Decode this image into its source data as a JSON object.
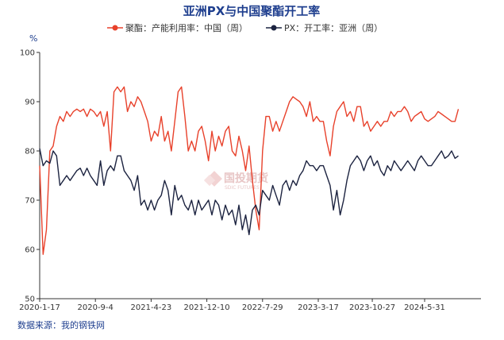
{
  "chart_data": {
    "type": "line",
    "title": "亚洲PX与中国聚酯开工率",
    "ylabel": "%",
    "ylim": [
      50,
      100
    ],
    "yticks": [
      50,
      60,
      70,
      80,
      90,
      100
    ],
    "xticks": [
      "2020-1-17",
      "2020-9-4",
      "2021-4-23",
      "2021-12-10",
      "2022-7-29",
      "2023-3-17",
      "2023-10-27",
      "2024-5-31"
    ],
    "grid": false,
    "legend_position": "top-center",
    "source": "数据来源：我的钢铁网",
    "watermark": {
      "text": "国投期货",
      "sub": "SDIC FUTURES"
    },
    "x": [
      "2020-01-17",
      "2020-01-31",
      "2020-02-14",
      "2020-02-28",
      "2020-03-13",
      "2020-03-27",
      "2020-04-10",
      "2020-04-24",
      "2020-05-08",
      "2020-05-22",
      "2020-06-05",
      "2020-06-19",
      "2020-07-03",
      "2020-07-17",
      "2020-07-31",
      "2020-08-14",
      "2020-08-28",
      "2020-09-11",
      "2020-09-25",
      "2020-10-09",
      "2020-10-23",
      "2020-11-06",
      "2020-11-20",
      "2020-12-04",
      "2020-12-18",
      "2021-01-01",
      "2021-01-15",
      "2021-01-29",
      "2021-02-12",
      "2021-02-26",
      "2021-03-12",
      "2021-03-26",
      "2021-04-09",
      "2021-04-23",
      "2021-05-07",
      "2021-05-21",
      "2021-06-04",
      "2021-06-18",
      "2021-07-02",
      "2021-07-16",
      "2021-07-30",
      "2021-08-13",
      "2021-08-27",
      "2021-09-10",
      "2021-09-24",
      "2021-10-08",
      "2021-10-22",
      "2021-11-05",
      "2021-11-19",
      "2021-12-03",
      "2021-12-17",
      "2021-12-31",
      "2022-01-14",
      "2022-01-28",
      "2022-02-11",
      "2022-02-25",
      "2022-03-11",
      "2022-03-25",
      "2022-04-08",
      "2022-04-22",
      "2022-05-06",
      "2022-05-20",
      "2022-06-03",
      "2022-06-17",
      "2022-07-01",
      "2022-07-15",
      "2022-07-29",
      "2022-08-12",
      "2022-08-26",
      "2022-09-09",
      "2022-09-23",
      "2022-10-07",
      "2022-10-21",
      "2022-11-04",
      "2022-11-18",
      "2022-12-02",
      "2022-12-16",
      "2022-12-30",
      "2023-01-13",
      "2023-01-27",
      "2023-02-10",
      "2023-02-24",
      "2023-03-10",
      "2023-03-24",
      "2023-04-07",
      "2023-04-21",
      "2023-05-05",
      "2023-05-19",
      "2023-06-02",
      "2023-06-16",
      "2023-06-30",
      "2023-07-14",
      "2023-07-28",
      "2023-08-11",
      "2023-08-25",
      "2023-09-08",
      "2023-09-22",
      "2023-10-06",
      "2023-10-20",
      "2023-11-03",
      "2023-11-17",
      "2023-12-01",
      "2023-12-15",
      "2023-12-29",
      "2024-01-12",
      "2024-01-26",
      "2024-02-09",
      "2024-02-23",
      "2024-03-08",
      "2024-03-22",
      "2024-04-05",
      "2024-04-19",
      "2024-05-03",
      "2024-05-17",
      "2024-05-31",
      "2024-06-14",
      "2024-06-28",
      "2024-07-12",
      "2024-07-26",
      "2024-08-09",
      "2024-08-23",
      "2024-09-06",
      "2024-09-20",
      "2024-10-04",
      "2024-10-18"
    ],
    "series": [
      {
        "name": "聚酯：产能利用率：中国（周）",
        "color": "#e8412b",
        "values": [
          77,
          59,
          64,
          80,
          81,
          85,
          87,
          86,
          88,
          87,
          88,
          88.5,
          88,
          88.5,
          87,
          88.5,
          88,
          87,
          88,
          85,
          88,
          80,
          92,
          93,
          92,
          93,
          88,
          90,
          89,
          91,
          90,
          88,
          86,
          82,
          84,
          83,
          87,
          82,
          84,
          80,
          86,
          92,
          93,
          87,
          80,
          82,
          80,
          84,
          85,
          82,
          78,
          84,
          80,
          83,
          81,
          84,
          85,
          80,
          79,
          83,
          80,
          76,
          81,
          74,
          68,
          64,
          80,
          87,
          87,
          84,
          86,
          84,
          86,
          88,
          90,
          91,
          90.5,
          90,
          89,
          87,
          90,
          86,
          87,
          86,
          86,
          82,
          79,
          85,
          88,
          89,
          90,
          87,
          88,
          86,
          89,
          89,
          85,
          86,
          84,
          85,
          86,
          85,
          86,
          86,
          88,
          87,
          88,
          88,
          89,
          88,
          86,
          87,
          87.5,
          88,
          86.5,
          86,
          86.5,
          87,
          88,
          87.5,
          87,
          86.5,
          86,
          86,
          88.5
        ]
      },
      {
        "name": "PX：开工率：亚洲（周）",
        "color": "#1c2340",
        "values": [
          80.5,
          77,
          78,
          77.5,
          80,
          79,
          73,
          74,
          75,
          74,
          75,
          76,
          76.5,
          75,
          76.5,
          75,
          74,
          73,
          78,
          73,
          76,
          77,
          76,
          79,
          79,
          76,
          75,
          74,
          72,
          75,
          69,
          70,
          68,
          70,
          68,
          70,
          71,
          74,
          72,
          67,
          73,
          70,
          71,
          69,
          68,
          70,
          67,
          70,
          68,
          69,
          70,
          67,
          70,
          69,
          66,
          69,
          67,
          68,
          65,
          69,
          64,
          67,
          63,
          68,
          69,
          67,
          72,
          71,
          70,
          73,
          71,
          69,
          73,
          74,
          72,
          74,
          73,
          75,
          76,
          78,
          77,
          77,
          76,
          77,
          77,
          75,
          73,
          68,
          72,
          67,
          70,
          74,
          77,
          78,
          79,
          78,
          76,
          78,
          79,
          77,
          78,
          76,
          75,
          77,
          76,
          78,
          77,
          76,
          77,
          78,
          77,
          76,
          78,
          79,
          78,
          77,
          77,
          78,
          79,
          80,
          78.5,
          79,
          80,
          78.5,
          79
        ]
      }
    ]
  }
}
